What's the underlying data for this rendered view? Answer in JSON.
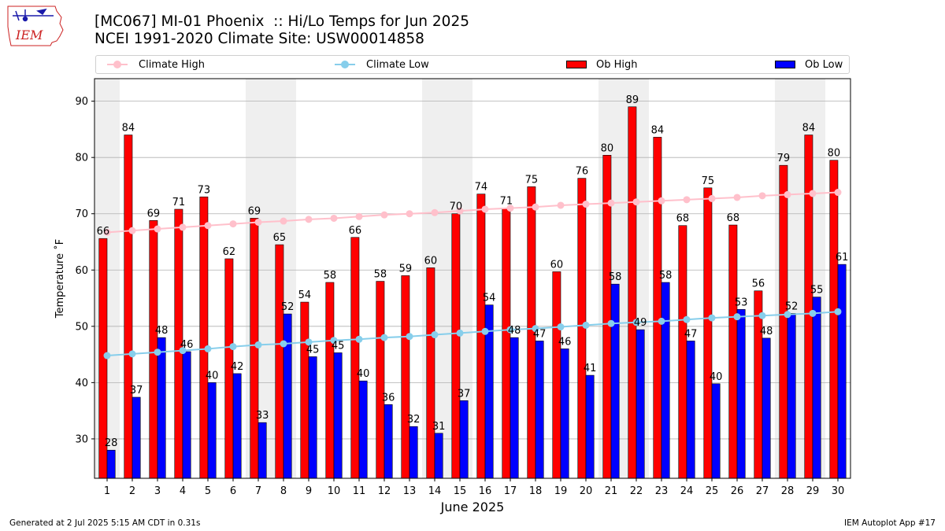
{
  "header": {
    "title_line1": "[MC067] MI-01 Phoenix  :: Hi/Lo Temps for Jun 2025",
    "title_line2": "NCEI 1991-2020 Climate Site: USW00014858"
  },
  "logo": {
    "text": "IEM",
    "icon": "iem-iowa-logo",
    "color": "#cc2222"
  },
  "legend": {
    "items": [
      {
        "label": "Climate High",
        "color": "#ffc0cb",
        "kind": "line"
      },
      {
        "label": "Climate Low",
        "color": "#87ceeb",
        "kind": "line"
      },
      {
        "label": "Ob High",
        "color": "#ff0000",
        "kind": "bar"
      },
      {
        "label": "Ob Low",
        "color": "#0000ff",
        "kind": "bar"
      }
    ]
  },
  "footer": {
    "left": "Generated at 2 Jul 2025 5:15 AM CDT in 0.31s",
    "right": "IEM Autoplot App #17"
  },
  "chart_data": {
    "type": "bar",
    "title": "[MC067] MI-01 Phoenix  :: Hi/Lo Temps for Jun 2025",
    "subtitle": "NCEI 1991-2020 Climate Site: USW00014858",
    "xlabel": "June 2025",
    "ylabel": "Temperature ˚F",
    "ylim": [
      23,
      94
    ],
    "yticks": [
      30,
      40,
      50,
      60,
      70,
      80,
      90
    ],
    "grid": true,
    "legend_position": "top",
    "weekend_shading_days": [
      1,
      7,
      8,
      14,
      15,
      21,
      22,
      28,
      29
    ],
    "x": [
      1,
      2,
      3,
      4,
      5,
      6,
      7,
      8,
      9,
      10,
      11,
      12,
      13,
      14,
      15,
      16,
      17,
      18,
      19,
      20,
      21,
      22,
      23,
      24,
      25,
      26,
      27,
      28,
      29,
      30
    ],
    "series": [
      {
        "name": "Ob High",
        "kind": "bar",
        "color": "#ff0000",
        "values": [
          65.6,
          84,
          68.8,
          70.8,
          73,
          62,
          69.2,
          64.5,
          54.3,
          57.8,
          65.8,
          58,
          59,
          60.4,
          70,
          73.5,
          71,
          74.8,
          59.7,
          76.3,
          80.4,
          89,
          83.6,
          67.9,
          74.6,
          68,
          56.3,
          78.6,
          84,
          79.5
        ],
        "labels": [
          66,
          84,
          69,
          71,
          73,
          62,
          69,
          65,
          54,
          58,
          66,
          58,
          59,
          60,
          70,
          74,
          71,
          75,
          60,
          76,
          80,
          89,
          84,
          68,
          75,
          68,
          56,
          79,
          84,
          80
        ]
      },
      {
        "name": "Ob Low",
        "kind": "bar",
        "color": "#0000ff",
        "values": [
          28,
          37.4,
          48,
          45.5,
          40,
          41.6,
          32.9,
          52.2,
          44.6,
          45.3,
          40.3,
          36.1,
          32.2,
          31,
          36.8,
          53.8,
          48,
          47.4,
          46,
          41.3,
          57.5,
          49.4,
          57.8,
          47.4,
          39.8,
          53,
          47.9,
          52.3,
          55.2,
          61
        ],
        "labels": [
          28,
          37,
          48,
          46,
          40,
          42,
          33,
          52,
          45,
          45,
          40,
          36,
          32,
          31,
          37,
          54,
          48,
          47,
          46,
          41,
          58,
          49,
          58,
          47,
          40,
          53,
          48,
          52,
          55,
          61
        ]
      },
      {
        "name": "Climate High",
        "kind": "line",
        "color": "#ffc0cb",
        "values": [
          66.7,
          67.0,
          67.3,
          67.6,
          67.9,
          68.2,
          68.5,
          68.7,
          69.0,
          69.2,
          69.5,
          69.8,
          70.0,
          70.2,
          70.5,
          70.8,
          71.0,
          71.2,
          71.5,
          71.7,
          71.9,
          72.1,
          72.3,
          72.5,
          72.7,
          72.9,
          73.2,
          73.4,
          73.6,
          73.8
        ]
      },
      {
        "name": "Climate Low",
        "kind": "line",
        "color": "#87ceeb",
        "values": [
          44.8,
          45.1,
          45.4,
          45.7,
          46.0,
          46.4,
          46.7,
          46.9,
          47.2,
          47.5,
          47.7,
          48.0,
          48.2,
          48.5,
          48.8,
          49.1,
          49.4,
          49.6,
          49.9,
          50.2,
          50.5,
          50.7,
          50.9,
          51.2,
          51.5,
          51.7,
          51.9,
          52.1,
          52.3,
          52.6
        ]
      }
    ]
  }
}
